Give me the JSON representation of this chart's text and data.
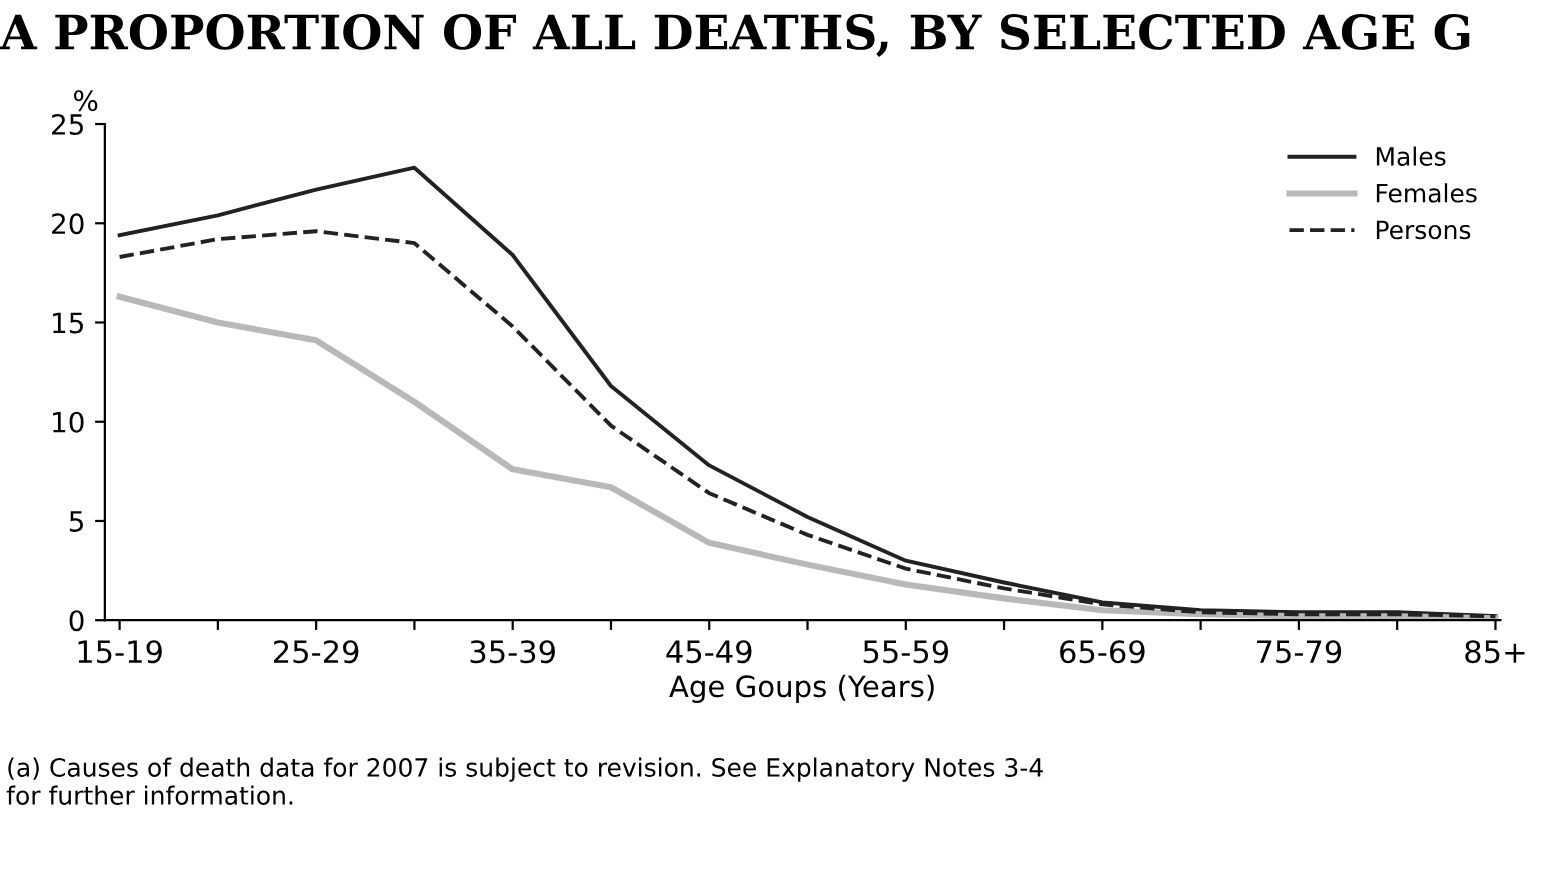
{
  "chart_data": {
    "type": "line",
    "title": "A PROPORTION OF ALL DEATHS, BY SELECTED AGE G",
    "ylabel": "%",
    "xlabel": "Age Goups (Years)",
    "annotations": [
      "(a) Causes of death data for 2007 is subject to revision. See Explanatory Notes 3-4\nfor further information."
    ],
    "categories": [
      "15-19",
      null,
      "25-29",
      null,
      "35-39",
      null,
      "45-49",
      null,
      "55-59",
      null,
      "65-69",
      null,
      "75-79",
      null,
      "85+"
    ],
    "series": [
      {
        "name": "Males",
        "color": "#222222",
        "line_style": "solid",
        "values": [
          19.4,
          20.4,
          21.7,
          22.8,
          18.4,
          11.8,
          7.8,
          5.2,
          3.0,
          1.9,
          0.9,
          0.5,
          0.4,
          0.4,
          0.2
        ]
      },
      {
        "name": "Females",
        "color": "#b8b8b8",
        "line_style": "solid",
        "values": [
          16.3,
          15.0,
          14.1,
          11.0,
          7.6,
          6.7,
          3.9,
          2.8,
          1.8,
          1.1,
          0.5,
          0.3,
          0.2,
          0.2,
          0.1
        ]
      },
      {
        "name": "Persons",
        "color": "#222222",
        "line_style": "dashed",
        "values": [
          18.3,
          19.2,
          19.6,
          19.0,
          14.8,
          9.8,
          6.4,
          4.3,
          2.6,
          1.6,
          0.8,
          0.4,
          0.3,
          0.3,
          0.2
        ]
      }
    ],
    "ylim": [
      0,
      25
    ],
    "yticks": [
      0,
      5,
      10,
      15,
      20,
      25
    ],
    "grid": false,
    "legend": "top right"
  }
}
